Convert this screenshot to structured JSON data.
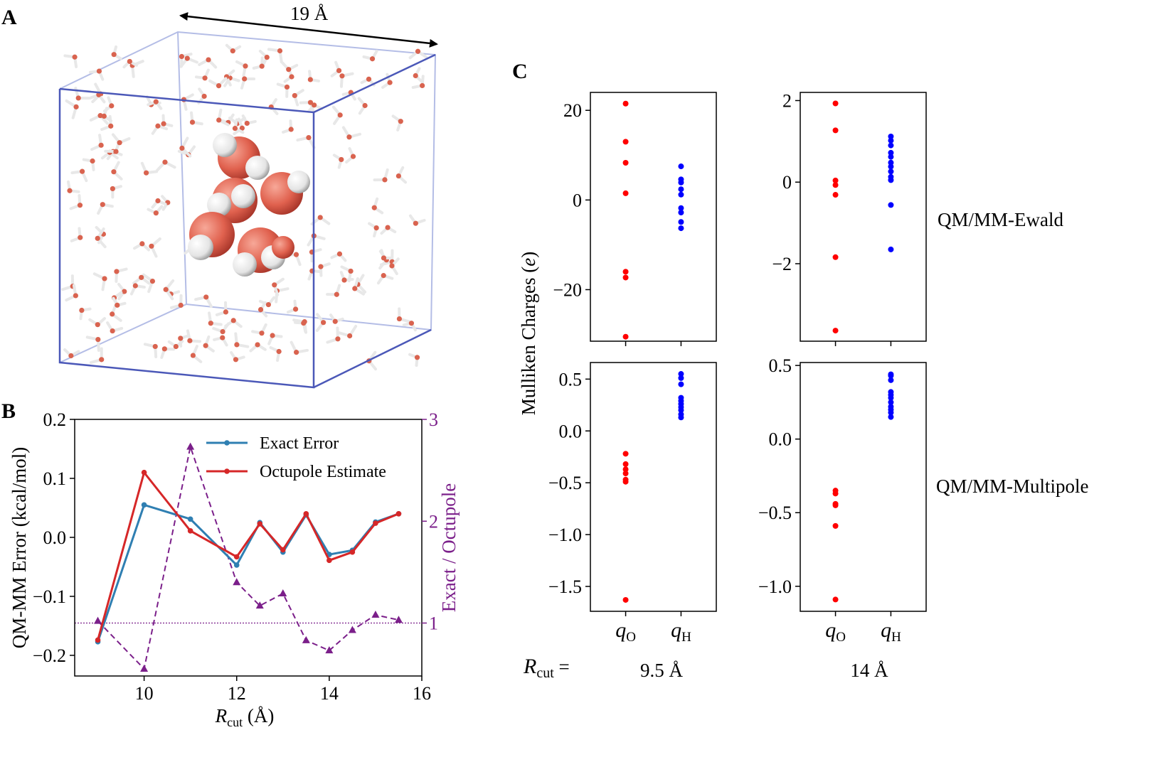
{
  "panels": {
    "a": {
      "letter": "A",
      "box_label": "19 Å"
    },
    "b": {
      "letter": "B"
    },
    "c": {
      "letter": "C"
    }
  },
  "colors": {
    "exact": "#2f7fb2",
    "octupole": "#d62728",
    "ratio": "#7b1f8a",
    "box": "#4b58b8",
    "oxygen": "#e05555",
    "hydrogen": "#ffffff",
    "red_dot": "#ff0000",
    "blue_dot": "#0000ff"
  },
  "c_labels": {
    "ylabel_prefix": "Mulliken Charges (",
    "ylabel_var": "e",
    "ylabel_suffix": ")",
    "row_labels": [
      "QM/MM-Ewald",
      "QM/MM-Multipole"
    ],
    "rcut_prefix": "R",
    "rcut_sub": "cut",
    "rcut_eq": " =",
    "col_labels": [
      "9.5 Å",
      "14 Å"
    ],
    "xtick_q": "q",
    "xtick_subs": [
      "O",
      "H"
    ]
  },
  "chart_data": [
    {
      "id": "B",
      "type": "line",
      "xlabel_main": "R",
      "xlabel_sub": "cut",
      "xlabel_unit": " (Å)",
      "ylabel": "QM-MM Error (kcal/mol)",
      "ylabel_right": "Exact / Octupole",
      "xlim": [
        8.5,
        16
      ],
      "ylim": [
        -0.235,
        0.2
      ],
      "ylim_right": [
        0.48,
        3
      ],
      "xticks": [
        "10",
        "12",
        "14",
        "16"
      ],
      "yticks": [
        "0.2",
        "0.1",
        "0.0",
        "−0.1",
        "−0.2"
      ],
      "yticks_right": [
        "1",
        "2",
        "3"
      ],
      "x": [
        9,
        10,
        11,
        12,
        12.5,
        13,
        13.5,
        14,
        14.5,
        15,
        15.5
      ],
      "series": [
        {
          "name": "Exact Error",
          "axis": "left",
          "values": [
            -0.177,
            0.055,
            0.031,
            -0.047,
            0.025,
            -0.025,
            0.038,
            -0.029,
            -0.022,
            0.026,
            0.04
          ]
        },
        {
          "name": "Octupole Estimate",
          "axis": "left",
          "values": [
            -0.174,
            0.11,
            0.011,
            -0.033,
            0.023,
            -0.021,
            0.04,
            -0.039,
            -0.025,
            0.024,
            0.04
          ]
        },
        {
          "axis": "right",
          "values": [
            1.02,
            0.55,
            2.73,
            1.4,
            1.17,
            1.29,
            0.83,
            0.73,
            0.93,
            1.08,
            1.03
          ]
        }
      ],
      "reference_line_right": 1,
      "legend": "top-right"
    },
    {
      "id": "C-ewald-9.5",
      "type": "scatter",
      "ylim": [
        -31.5,
        24
      ],
      "yticks": [
        "20",
        "0",
        "−20"
      ],
      "ytick_values": [
        20,
        0,
        -20
      ],
      "series": [
        {
          "x": "qO",
          "values": [
            21.5,
            13.0,
            8.3,
            1.5,
            -16.0,
            -17.3,
            -30.5
          ]
        },
        {
          "x": "qH",
          "values": [
            7.5,
            4.6,
            3.9,
            2.4,
            1.2,
            -1.8,
            -2.8,
            -4.9,
            -6.3
          ]
        }
      ]
    },
    {
      "id": "C-ewald-14",
      "type": "scatter",
      "ylim": [
        -3.9,
        2.2
      ],
      "yticks": [
        "2",
        "0",
        "−2"
      ],
      "ytick_values": [
        2,
        0,
        -2
      ],
      "series": [
        {
          "x": "qO",
          "values": [
            1.93,
            1.27,
            0.04,
            -0.07,
            -0.31,
            -1.84,
            -3.64
          ]
        },
        {
          "x": "qH",
          "values": [
            1.12,
            1.02,
            0.9,
            0.72,
            0.62,
            0.48,
            0.38,
            0.26,
            0.13,
            0.05,
            -0.56,
            -1.65
          ]
        }
      ]
    },
    {
      "id": "C-multipole-9.5",
      "type": "scatter",
      "ylim": [
        -1.74,
        0.66
      ],
      "yticks": [
        "0.5",
        "0.0",
        "−0.5",
        "−1.0",
        "−1.5"
      ],
      "ytick_values": [
        0.5,
        0.0,
        -0.5,
        -1.0,
        -1.5
      ],
      "series": [
        {
          "x": "qO",
          "values": [
            -0.22,
            -0.32,
            -0.37,
            -0.41,
            -0.47,
            -0.49,
            -1.63
          ]
        },
        {
          "x": "qH",
          "values": [
            0.55,
            0.51,
            0.45,
            0.32,
            0.29,
            0.26,
            0.23,
            0.2,
            0.16,
            0.13
          ]
        }
      ]
    },
    {
      "id": "C-multipole-14",
      "type": "scatter",
      "ylim": [
        -1.17,
        0.52
      ],
      "yticks": [
        "0.5",
        "0.0",
        "−0.5",
        "−1.0"
      ],
      "ytick_values": [
        0.5,
        0.0,
        -0.5,
        -1.0
      ],
      "series": [
        {
          "x": "qO",
          "values": [
            -0.35,
            -0.37,
            -0.44,
            -0.45,
            -0.59,
            -1.09
          ]
        },
        {
          "x": "qH",
          "values": [
            0.44,
            0.43,
            0.4,
            0.32,
            0.3,
            0.28,
            0.25,
            0.22,
            0.2,
            0.18,
            0.15
          ]
        }
      ]
    }
  ]
}
